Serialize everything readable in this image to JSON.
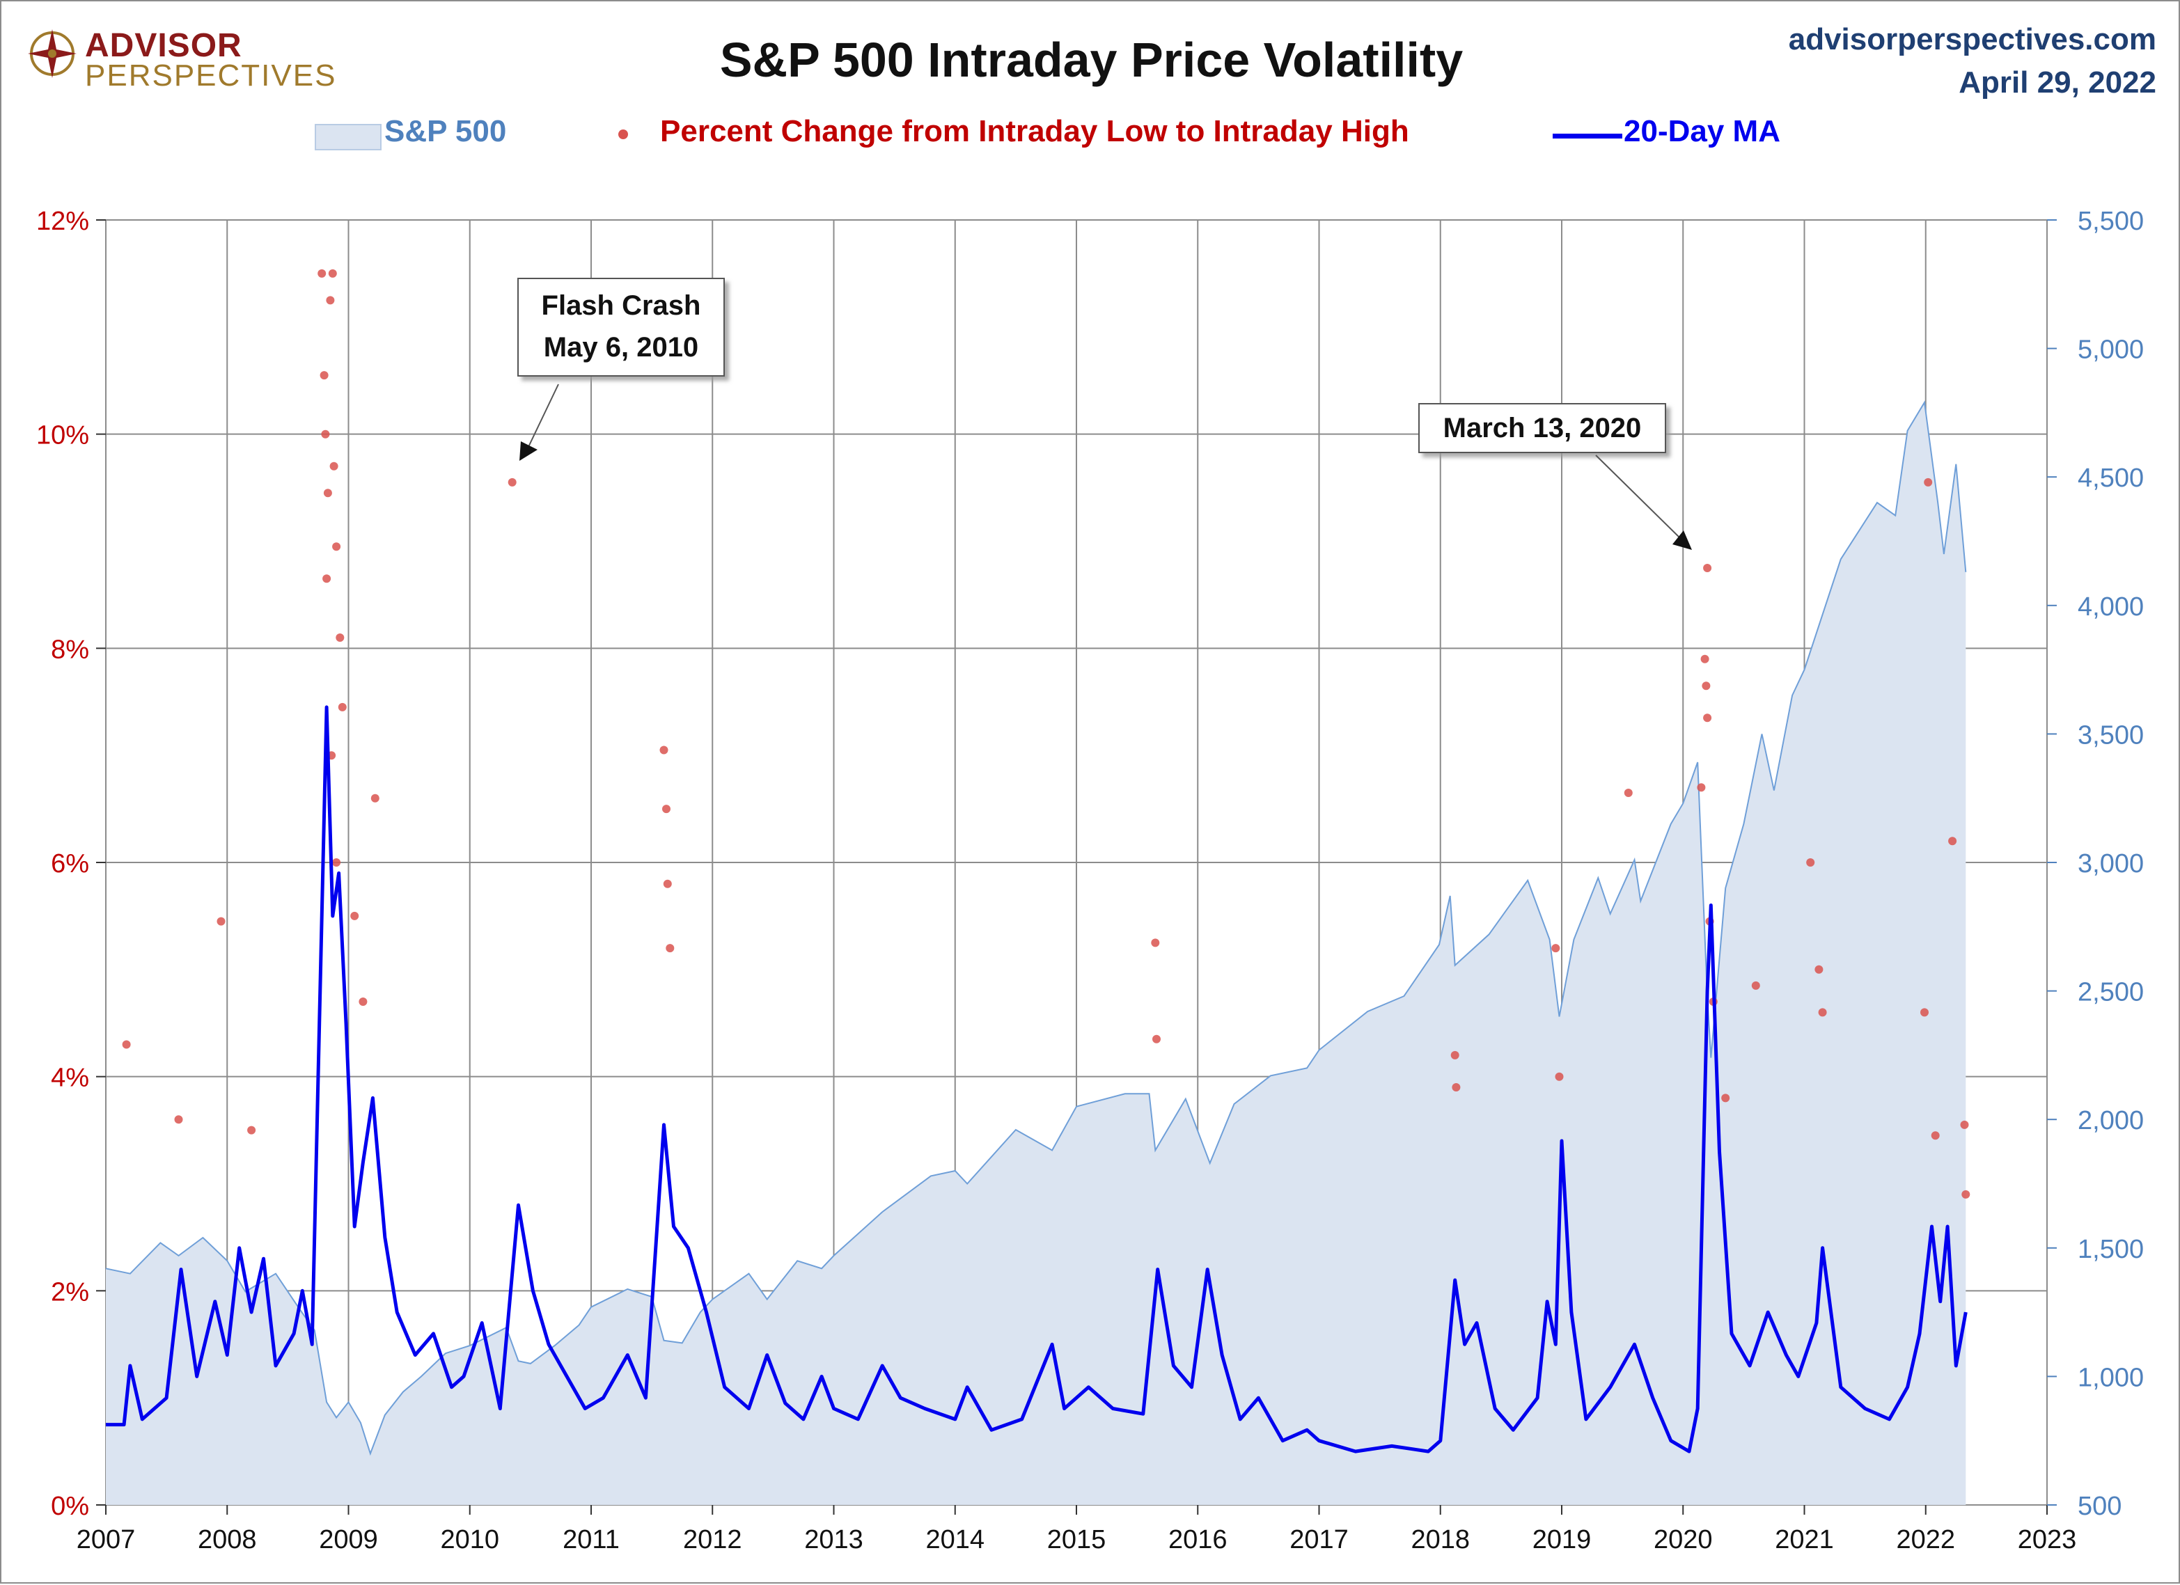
{
  "header": {
    "logo_line1": "ADVISOR",
    "logo_line2": "PERSPECTIVES",
    "title": "S&P 500 Intraday Price Volatility",
    "site": "advisorperspectives.com",
    "date": "April 29, 2022"
  },
  "legend": {
    "sp500": "S&P 500",
    "pct_change": "Percent Change from Intraday Low to Intraday High",
    "ma": "20-Day MA"
  },
  "colors": {
    "area_fill": "#dbe4f1",
    "area_line": "#6f9fd8",
    "dots": "#d9534f",
    "ma_line": "#0000ee",
    "left_axis": "#c00000",
    "right_axis": "#4f81bd",
    "grid": "#8c8c8c"
  },
  "annotations": [
    {
      "id": "flash-crash",
      "line1": "Flash Crash",
      "line2": "May 6, 2010"
    },
    {
      "id": "march-2020",
      "line1": "March 13, 2020",
      "line2": ""
    }
  ],
  "chart_data": {
    "type": "scatter",
    "title": "S&P 500 Intraday Price Volatility",
    "x_ticks": [
      "2007",
      "2008",
      "2009",
      "2010",
      "2011",
      "2012",
      "2013",
      "2014",
      "2015",
      "2016",
      "2017",
      "2018",
      "2019",
      "2020",
      "2021",
      "2022",
      "2023"
    ],
    "xlim": [
      2007,
      2023
    ],
    "y_left": {
      "ticks": [
        "0%",
        "2%",
        "4%",
        "6%",
        "8%",
        "10%",
        "12%"
      ],
      "range": [
        0,
        12
      ],
      "unit": "percent"
    },
    "y_right": {
      "ticks": [
        "500",
        "1,000",
        "1,500",
        "2,000",
        "2,500",
        "3,000",
        "3,500",
        "4,000",
        "4,500",
        "5,000",
        "5,500"
      ],
      "range": [
        500,
        5500
      ]
    },
    "grid": true,
    "legend_position": "top",
    "series": [
      {
        "name": "S&P 500",
        "kind": "area",
        "axis": "right",
        "points": [
          [
            2007.0,
            1420
          ],
          [
            2007.2,
            1400
          ],
          [
            2007.45,
            1520
          ],
          [
            2007.6,
            1470
          ],
          [
            2007.8,
            1540
          ],
          [
            2008.0,
            1450
          ],
          [
            2008.15,
            1330
          ],
          [
            2008.4,
            1400
          ],
          [
            2008.6,
            1260
          ],
          [
            2008.72,
            1180
          ],
          [
            2008.82,
            900
          ],
          [
            2008.9,
            840
          ],
          [
            2009.0,
            900
          ],
          [
            2009.1,
            820
          ],
          [
            2009.18,
            700
          ],
          [
            2009.3,
            850
          ],
          [
            2009.45,
            940
          ],
          [
            2009.6,
            1000
          ],
          [
            2009.8,
            1090
          ],
          [
            2010.0,
            1120
          ],
          [
            2010.3,
            1190
          ],
          [
            2010.4,
            1060
          ],
          [
            2010.5,
            1050
          ],
          [
            2010.7,
            1120
          ],
          [
            2010.9,
            1200
          ],
          [
            2011.0,
            1270
          ],
          [
            2011.3,
            1340
          ],
          [
            2011.5,
            1310
          ],
          [
            2011.6,
            1140
          ],
          [
            2011.75,
            1130
          ],
          [
            2011.9,
            1250
          ],
          [
            2012.0,
            1300
          ],
          [
            2012.3,
            1400
          ],
          [
            2012.45,
            1300
          ],
          [
            2012.7,
            1450
          ],
          [
            2012.9,
            1420
          ],
          [
            2013.0,
            1470
          ],
          [
            2013.4,
            1640
          ],
          [
            2013.8,
            1780
          ],
          [
            2014.0,
            1800
          ],
          [
            2014.1,
            1750
          ],
          [
            2014.5,
            1960
          ],
          [
            2014.8,
            1880
          ],
          [
            2015.0,
            2050
          ],
          [
            2015.4,
            2100
          ],
          [
            2015.6,
            2100
          ],
          [
            2015.65,
            1880
          ],
          [
            2015.9,
            2080
          ],
          [
            2016.1,
            1830
          ],
          [
            2016.3,
            2060
          ],
          [
            2016.6,
            2170
          ],
          [
            2016.9,
            2200
          ],
          [
            2017.0,
            2270
          ],
          [
            2017.4,
            2420
          ],
          [
            2017.7,
            2480
          ],
          [
            2017.99,
            2680
          ],
          [
            2018.08,
            2870
          ],
          [
            2018.12,
            2600
          ],
          [
            2018.4,
            2720
          ],
          [
            2018.72,
            2930
          ],
          [
            2018.9,
            2700
          ],
          [
            2018.98,
            2400
          ],
          [
            2019.1,
            2700
          ],
          [
            2019.3,
            2940
          ],
          [
            2019.4,
            2800
          ],
          [
            2019.6,
            3010
          ],
          [
            2019.65,
            2850
          ],
          [
            2019.9,
            3150
          ],
          [
            2020.0,
            3230
          ],
          [
            2020.12,
            3390
          ],
          [
            2020.2,
            2480
          ],
          [
            2020.23,
            2240
          ],
          [
            2020.35,
            2900
          ],
          [
            2020.5,
            3150
          ],
          [
            2020.65,
            3500
          ],
          [
            2020.75,
            3280
          ],
          [
            2020.9,
            3650
          ],
          [
            2021.0,
            3750
          ],
          [
            2021.3,
            4180
          ],
          [
            2021.6,
            4400
          ],
          [
            2021.75,
            4350
          ],
          [
            2021.85,
            4680
          ],
          [
            2021.99,
            4790
          ],
          [
            2022.1,
            4400
          ],
          [
            2022.15,
            4200
          ],
          [
            2022.25,
            4550
          ],
          [
            2022.33,
            4130
          ]
        ]
      },
      {
        "name": "20-Day MA",
        "kind": "line",
        "axis": "left",
        "points": [
          [
            2007.0,
            0.75
          ],
          [
            2007.15,
            0.75
          ],
          [
            2007.2,
            1.3
          ],
          [
            2007.3,
            0.8
          ],
          [
            2007.5,
            1.0
          ],
          [
            2007.62,
            2.2
          ],
          [
            2007.75,
            1.2
          ],
          [
            2007.9,
            1.9
          ],
          [
            2008.0,
            1.4
          ],
          [
            2008.1,
            2.4
          ],
          [
            2008.2,
            1.8
          ],
          [
            2008.3,
            2.3
          ],
          [
            2008.4,
            1.3
          ],
          [
            2008.55,
            1.6
          ],
          [
            2008.62,
            2.0
          ],
          [
            2008.7,
            1.5
          ],
          [
            2008.76,
            4.5
          ],
          [
            2008.82,
            7.45
          ],
          [
            2008.87,
            5.5
          ],
          [
            2008.92,
            5.9
          ],
          [
            2008.98,
            4.5
          ],
          [
            2009.05,
            2.6
          ],
          [
            2009.12,
            3.2
          ],
          [
            2009.2,
            3.8
          ],
          [
            2009.3,
            2.5
          ],
          [
            2009.4,
            1.8
          ],
          [
            2009.55,
            1.4
          ],
          [
            2009.7,
            1.6
          ],
          [
            2009.85,
            1.1
          ],
          [
            2009.95,
            1.2
          ],
          [
            2010.1,
            1.7
          ],
          [
            2010.25,
            0.9
          ],
          [
            2010.4,
            2.8
          ],
          [
            2010.52,
            2.0
          ],
          [
            2010.65,
            1.5
          ],
          [
            2010.8,
            1.2
          ],
          [
            2010.95,
            0.9
          ],
          [
            2011.1,
            1.0
          ],
          [
            2011.3,
            1.4
          ],
          [
            2011.45,
            1.0
          ],
          [
            2011.6,
            3.55
          ],
          [
            2011.68,
            2.6
          ],
          [
            2011.8,
            2.4
          ],
          [
            2011.95,
            1.8
          ],
          [
            2012.1,
            1.1
          ],
          [
            2012.3,
            0.9
          ],
          [
            2012.45,
            1.4
          ],
          [
            2012.6,
            0.95
          ],
          [
            2012.75,
            0.8
          ],
          [
            2012.9,
            1.2
          ],
          [
            2013.0,
            0.9
          ],
          [
            2013.2,
            0.8
          ],
          [
            2013.4,
            1.3
          ],
          [
            2013.55,
            1.0
          ],
          [
            2013.75,
            0.9
          ],
          [
            2014.0,
            0.8
          ],
          [
            2014.1,
            1.1
          ],
          [
            2014.3,
            0.7
          ],
          [
            2014.55,
            0.8
          ],
          [
            2014.8,
            1.5
          ],
          [
            2014.9,
            0.9
          ],
          [
            2015.1,
            1.1
          ],
          [
            2015.3,
            0.9
          ],
          [
            2015.55,
            0.85
          ],
          [
            2015.67,
            2.2
          ],
          [
            2015.8,
            1.3
          ],
          [
            2015.95,
            1.1
          ],
          [
            2016.08,
            2.2
          ],
          [
            2016.2,
            1.4
          ],
          [
            2016.35,
            0.8
          ],
          [
            2016.5,
            1.0
          ],
          [
            2016.7,
            0.6
          ],
          [
            2016.9,
            0.7
          ],
          [
            2017.0,
            0.6
          ],
          [
            2017.3,
            0.5
          ],
          [
            2017.6,
            0.55
          ],
          [
            2017.9,
            0.5
          ],
          [
            2018.0,
            0.6
          ],
          [
            2018.12,
            2.1
          ],
          [
            2018.2,
            1.5
          ],
          [
            2018.3,
            1.7
          ],
          [
            2018.45,
            0.9
          ],
          [
            2018.6,
            0.7
          ],
          [
            2018.8,
            1.0
          ],
          [
            2018.88,
            1.9
          ],
          [
            2018.95,
            1.5
          ],
          [
            2019.0,
            3.4
          ],
          [
            2019.08,
            1.8
          ],
          [
            2019.2,
            0.8
          ],
          [
            2019.4,
            1.1
          ],
          [
            2019.6,
            1.5
          ],
          [
            2019.75,
            1.0
          ],
          [
            2019.9,
            0.6
          ],
          [
            2020.05,
            0.5
          ],
          [
            2020.12,
            0.9
          ],
          [
            2020.2,
            4.8
          ],
          [
            2020.23,
            5.6
          ],
          [
            2020.3,
            3.3
          ],
          [
            2020.4,
            1.6
          ],
          [
            2020.55,
            1.3
          ],
          [
            2020.7,
            1.8
          ],
          [
            2020.85,
            1.4
          ],
          [
            2020.95,
            1.2
          ],
          [
            2021.1,
            1.7
          ],
          [
            2021.15,
            2.4
          ],
          [
            2021.3,
            1.1
          ],
          [
            2021.5,
            0.9
          ],
          [
            2021.7,
            0.8
          ],
          [
            2021.85,
            1.1
          ],
          [
            2021.95,
            1.6
          ],
          [
            2022.05,
            2.6
          ],
          [
            2022.12,
            1.9
          ],
          [
            2022.18,
            2.6
          ],
          [
            2022.25,
            1.3
          ],
          [
            2022.33,
            1.8
          ]
        ]
      },
      {
        "name": "Percent Change from Intraday Low to Intraday High",
        "kind": "scatter",
        "axis": "left",
        "points": [
          [
            2007.17,
            4.3
          ],
          [
            2007.6,
            3.6
          ],
          [
            2007.95,
            5.45
          ],
          [
            2008.2,
            3.5
          ],
          [
            2008.78,
            11.5
          ],
          [
            2008.8,
            10.55
          ],
          [
            2008.81,
            10.0
          ],
          [
            2008.83,
            9.45
          ],
          [
            2008.85,
            11.25
          ],
          [
            2008.87,
            11.5
          ],
          [
            2008.88,
            9.7
          ],
          [
            2008.9,
            8.95
          ],
          [
            2008.82,
            8.65
          ],
          [
            2008.93,
            8.1
          ],
          [
            2008.95,
            7.45
          ],
          [
            2008.86,
            7.0
          ],
          [
            2008.9,
            6.0
          ],
          [
            2009.22,
            6.6
          ],
          [
            2009.05,
            5.5
          ],
          [
            2009.12,
            4.7
          ],
          [
            2010.35,
            9.55
          ],
          [
            2011.6,
            7.05
          ],
          [
            2011.62,
            6.5
          ],
          [
            2011.63,
            5.8
          ],
          [
            2011.65,
            5.2
          ],
          [
            2015.65,
            5.25
          ],
          [
            2015.66,
            4.35
          ],
          [
            2018.12,
            4.2
          ],
          [
            2018.13,
            3.9
          ],
          [
            2018.95,
            5.2
          ],
          [
            2018.98,
            4.0
          ],
          [
            2019.55,
            6.65
          ],
          [
            2020.2,
            8.75
          ],
          [
            2020.18,
            7.9
          ],
          [
            2020.19,
            7.65
          ],
          [
            2020.2,
            7.35
          ],
          [
            2020.15,
            6.7
          ],
          [
            2020.22,
            5.45
          ],
          [
            2020.25,
            4.7
          ],
          [
            2020.35,
            3.8
          ],
          [
            2020.6,
            4.85
          ],
          [
            2021.05,
            6.0
          ],
          [
            2021.12,
            5.0
          ],
          [
            2021.15,
            4.6
          ],
          [
            2022.02,
            9.55
          ],
          [
            2022.22,
            6.2
          ],
          [
            2021.99,
            4.6
          ],
          [
            2022.08,
            3.45
          ],
          [
            2022.32,
            3.55
          ],
          [
            2022.33,
            2.9
          ]
        ]
      }
    ]
  }
}
